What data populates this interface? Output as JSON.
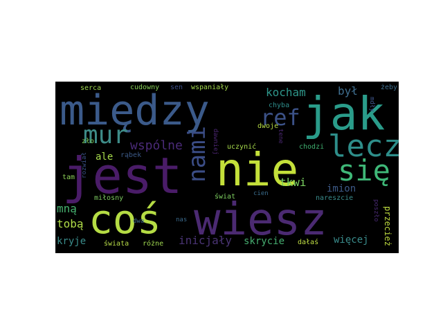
{
  "wordcloud": {
    "background": "#000000",
    "words": [
      {
        "text": "między",
        "color": "#3b5a8a"
      },
      {
        "text": "jak",
        "color": "#2a9c8a"
      },
      {
        "text": "jest",
        "color": "#4a1c68"
      },
      {
        "text": "nie",
        "color": "#c4e03a"
      },
      {
        "text": "coś",
        "color": "#b5dc44"
      },
      {
        "text": "wiesz",
        "color": "#4b2a72"
      },
      {
        "text": "lecz",
        "color": "#2e8e8a"
      },
      {
        "text": "się",
        "color": "#3fb878"
      },
      {
        "text": "mur",
        "color": "#3e8c88"
      },
      {
        "text": "nami",
        "color": "#3b4d86"
      },
      {
        "text": "ref",
        "color": "#3c5288"
      },
      {
        "text": "wspólne",
        "color": "#4a2a78"
      },
      {
        "text": "kocham",
        "color": "#2e968a"
      },
      {
        "text": "był",
        "color": "#3f6f90"
      },
      {
        "text": "ale",
        "color": "#a8dc4c"
      },
      {
        "text": "imion",
        "color": "#3d5a88"
      },
      {
        "text": "tkwi",
        "color": "#7ad060"
      },
      {
        "text": "mną",
        "color": "#46b270"
      },
      {
        "text": "tobą",
        "color": "#b0dd48"
      },
      {
        "text": "kryje",
        "color": "#3b8d8c"
      },
      {
        "text": "inicjały",
        "color": "#4a3474"
      },
      {
        "text": "skrycie",
        "color": "#46ad70"
      },
      {
        "text": "więcej",
        "color": "#3a8c8c"
      },
      {
        "text": "przecież",
        "color": "#c0de40"
      },
      {
        "text": "serca",
        "color": "#a0d850"
      },
      {
        "text": "cudowny",
        "color": "#88d058"
      },
      {
        "text": "sen",
        "color": "#3b4e88"
      },
      {
        "text": "wspaniały",
        "color": "#a4da4e"
      },
      {
        "text": "żeby",
        "color": "#3e6e8e"
      },
      {
        "text": "chyba",
        "color": "#2e8e8c"
      },
      {
        "text": "mdły",
        "color": "#3d5388"
      },
      {
        "text": "dwoje",
        "color": "#b6dd46"
      },
      {
        "text": "zło",
        "color": "#7ccc5a"
      },
      {
        "text": "uczynić",
        "color": "#a8dc4c"
      },
      {
        "text": "dawniej",
        "color": "#4b2672"
      },
      {
        "text": "chodzi",
        "color": "#3fb070"
      },
      {
        "text": "rozwiał",
        "color": "#3b5288"
      },
      {
        "text": "rąbek",
        "color": "#3c5a88"
      },
      {
        "text": "tam",
        "color": "#8cd058"
      },
      {
        "text": "świat",
        "color": "#7ed060"
      },
      {
        "text": "cien",
        "color": "#3a6c8c"
      },
      {
        "text": "tene",
        "color": "#4b2872"
      },
      {
        "text": "nareszcie",
        "color": "#3a8c8c"
      },
      {
        "text": "miłosny",
        "color": "#7cc860"
      },
      {
        "text": "dwa",
        "color": "#3e6a8c"
      },
      {
        "text": "nas",
        "color": "#3b6a8c"
      },
      {
        "text": "poszło",
        "color": "#4a2a74"
      },
      {
        "text": "dałaś",
        "color": "#c0df44"
      },
      {
        "text": "świata",
        "color": "#b8dc48"
      },
      {
        "text": "różne",
        "color": "#a0d850"
      }
    ]
  }
}
